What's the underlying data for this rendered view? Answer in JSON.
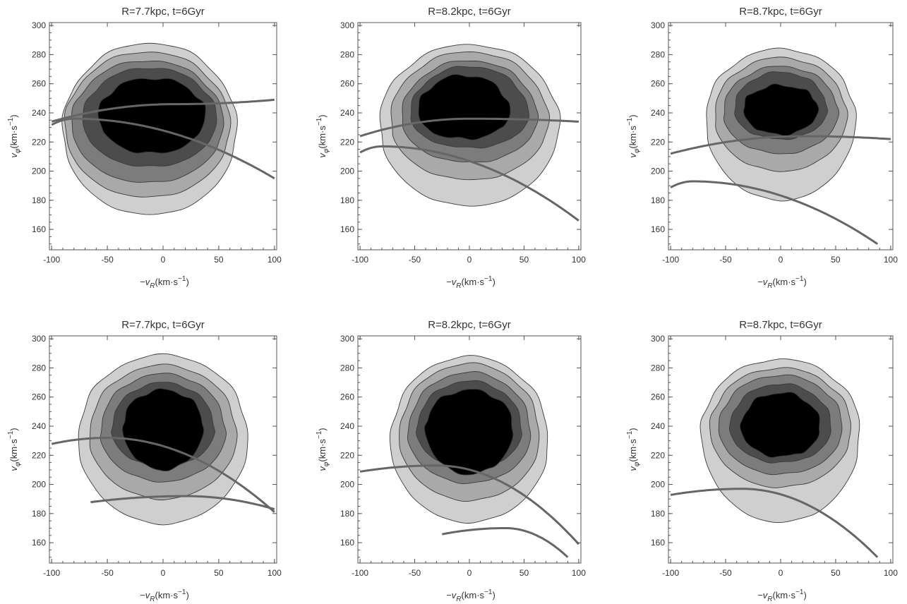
{
  "chart_data": [
    {
      "type": "contour",
      "title": "R=7.7kpc, t=6Gyr",
      "xlabel_var": "−v",
      "xlabel_sub": "R",
      "xlabel_unit": "(km·s",
      "xlabel_exp": "−1",
      "xlabel_close": ")",
      "ylabel_var": "v",
      "ylabel_sub": "φ",
      "ylabel_unit": "(km·s",
      "ylabel_exp": "−1",
      "ylabel_close": ")",
      "xlim": [
        -102,
        102
      ],
      "ylim": [
        146,
        302
      ],
      "xticks": [
        -100,
        -50,
        0,
        50,
        100
      ],
      "yticks": [
        160,
        180,
        200,
        220,
        240,
        260,
        280,
        300
      ],
      "contours": [
        {
          "center": [
            -12,
            228
          ],
          "rx": 78,
          "ry_top": 60,
          "ry_bottom": 58,
          "flat_below": 205
        },
        {
          "center": [
            -14,
            230
          ],
          "rx": 74,
          "ry_top": 52,
          "ry_bottom": 48
        },
        {
          "center": [
            -14,
            232
          ],
          "rx": 68,
          "ry_top": 44,
          "ry_bottom": 40
        },
        {
          "center": [
            -12,
            235
          ],
          "rx": 60,
          "ry_top": 36,
          "ry_bottom": 32
        },
        {
          "center": [
            -10,
            238
          ],
          "rx": 48,
          "ry_top": 26,
          "ry_bottom": 26
        }
      ],
      "resonance_arcs": [
        {
          "x_start": -100,
          "x_end": 100,
          "y_peak": 246,
          "x_peak": 10,
          "y_end": 249
        },
        {
          "x_start": -100,
          "x_end": 100,
          "y_peak": 236,
          "x_peak": -80,
          "y_end": 195
        }
      ]
    },
    {
      "type": "contour",
      "title": "R=8.2kpc, t=6Gyr",
      "xlabel_var": "−v",
      "xlabel_sub": "R",
      "xlabel_unit": "(km·s",
      "xlabel_exp": "−1",
      "xlabel_close": ")",
      "ylabel_var": "v",
      "ylabel_sub": "φ",
      "ylabel_unit": "(km·s",
      "ylabel_exp": "−1",
      "ylabel_close": ")",
      "xlim": [
        -102,
        102
      ],
      "ylim": [
        146,
        302
      ],
      "xticks": [
        -100,
        -50,
        0,
        50,
        100
      ],
      "yticks": [
        160,
        180,
        200,
        220,
        240,
        260,
        280,
        300
      ],
      "contours": [
        {
          "center": [
            0,
            232
          ],
          "rx": 82,
          "ry_top": 55,
          "ry_bottom": 56,
          "flat_below": 212
        },
        {
          "center": [
            0,
            234
          ],
          "rx": 72,
          "ry_top": 48,
          "ry_bottom": 40
        },
        {
          "center": [
            0,
            236
          ],
          "rx": 62,
          "ry_top": 40,
          "ry_bottom": 30
        },
        {
          "center": [
            0,
            238
          ],
          "rx": 54,
          "ry_top": 34,
          "ry_bottom": 22
        },
        {
          "center": [
            -5,
            240
          ],
          "rx": 42,
          "ry_top": 26,
          "ry_bottom": 18
        }
      ],
      "resonance_arcs": [
        {
          "x_start": -100,
          "x_end": 100,
          "y_peak": 236,
          "x_peak": 0,
          "y_end": 234
        },
        {
          "x_start": -100,
          "x_end": 100,
          "y_peak": 217,
          "x_peak": -80,
          "y_end": 166
        }
      ]
    },
    {
      "type": "contour",
      "title": "R=8.7kpc, t=6Gyr",
      "xlabel_var": "−v",
      "xlabel_sub": "R",
      "xlabel_unit": "(km·s",
      "xlabel_exp": "−1",
      "xlabel_close": ")",
      "ylabel_var": "v",
      "ylabel_sub": "φ",
      "ylabel_unit": "(km·s",
      "ylabel_exp": "−1",
      "ylabel_close": ")",
      "xlim": [
        -102,
        102
      ],
      "ylim": [
        146,
        302
      ],
      "xticks": [
        -100,
        -50,
        0,
        50,
        100
      ],
      "yticks": [
        160,
        180,
        200,
        220,
        240,
        260,
        280,
        300
      ],
      "contours": [
        {
          "center": [
            0,
            236
          ],
          "rx": 68,
          "ry_top": 48,
          "ry_bottom": 56,
          "flat_below": 220
        },
        {
          "center": [
            0,
            238
          ],
          "rx": 60,
          "ry_top": 40,
          "ry_bottom": 38
        },
        {
          "center": [
            0,
            240
          ],
          "rx": 52,
          "ry_top": 32,
          "ry_bottom": 28
        },
        {
          "center": [
            0,
            242
          ],
          "rx": 42,
          "ry_top": 26,
          "ry_bottom": 20
        },
        {
          "center": [
            0,
            243
          ],
          "rx": 34,
          "ry_top": 16,
          "ry_bottom": 18
        }
      ],
      "resonance_arcs": [
        {
          "x_start": -100,
          "x_end": 100,
          "y_peak": 224,
          "x_peak": 20,
          "y_end": 222
        },
        {
          "x_start": -100,
          "x_end": 88,
          "y_peak": 193,
          "x_peak": -80,
          "y_end": 150
        }
      ]
    },
    {
      "type": "contour",
      "title": "R=7.7kpc, t=6Gyr",
      "xlabel_var": "−v",
      "xlabel_sub": "R",
      "xlabel_unit": "(km·s",
      "xlabel_exp": "−1",
      "xlabel_close": ")",
      "ylabel_var": "v",
      "ylabel_sub": "φ",
      "ylabel_unit": "(km·s",
      "ylabel_exp": "−1",
      "ylabel_close": ")",
      "xlim": [
        -102,
        102
      ],
      "ylim": [
        146,
        302
      ],
      "xticks": [
        -100,
        -50,
        0,
        50,
        100
      ],
      "yticks": [
        160,
        180,
        200,
        220,
        240,
        260,
        280,
        300
      ],
      "contours": [
        {
          "center": [
            0,
            232
          ],
          "rx": 76,
          "ry_top": 57,
          "ry_bottom": 59
        },
        {
          "center": [
            0,
            234
          ],
          "rx": 66,
          "ry_top": 48,
          "ry_bottom": 44
        },
        {
          "center": [
            0,
            236
          ],
          "rx": 56,
          "ry_top": 40,
          "ry_bottom": 34
        },
        {
          "center": [
            0,
            238
          ],
          "rx": 46,
          "ry_top": 32,
          "ry_bottom": 26
        },
        {
          "center": [
            0,
            240
          ],
          "rx": 36,
          "ry_top": 25,
          "ry_bottom": 30
        }
      ],
      "resonance_arcs": [
        {
          "x_start": -100,
          "x_end": 100,
          "y_peak": 232,
          "x_peak": -50,
          "y_end": 181
        },
        {
          "x_start": -65,
          "x_end": 100,
          "y_peak": 192,
          "x_peak": 20,
          "y_end": 183
        }
      ]
    },
    {
      "type": "contour",
      "title": "R=8.2kpc, t=6Gyr",
      "xlabel_var": "−v",
      "xlabel_sub": "R",
      "xlabel_unit": "(km·s",
      "xlabel_exp": "−1",
      "xlabel_close": ")",
      "ylabel_var": "v",
      "ylabel_sub": "φ",
      "ylabel_unit": "(km·s",
      "ylabel_exp": "−1",
      "ylabel_close": ")",
      "xlim": [
        -102,
        102
      ],
      "ylim": [
        146,
        302
      ],
      "xticks": [
        -100,
        -50,
        0,
        50,
        100
      ],
      "yticks": [
        160,
        180,
        200,
        220,
        240,
        260,
        280,
        300
      ],
      "contours": [
        {
          "center": [
            0,
            230
          ],
          "rx": 72,
          "ry_top": 58,
          "ry_bottom": 56
        },
        {
          "center": [
            0,
            233
          ],
          "rx": 64,
          "ry_top": 50,
          "ry_bottom": 44
        },
        {
          "center": [
            0,
            235
          ],
          "rx": 56,
          "ry_top": 42,
          "ry_bottom": 34
        },
        {
          "center": [
            0,
            237
          ],
          "rx": 48,
          "ry_top": 34,
          "ry_bottom": 26
        },
        {
          "center": [
            0,
            239
          ],
          "rx": 40,
          "ry_top": 26,
          "ry_bottom": 32
        }
      ],
      "resonance_arcs": [
        {
          "x_start": -100,
          "x_end": 100,
          "y_peak": 213,
          "x_peak": -30,
          "y_end": 159
        },
        {
          "x_start": -25,
          "x_end": 90,
          "y_peak": 170,
          "x_peak": 33,
          "y_end": 150
        }
      ]
    },
    {
      "type": "contour",
      "title": "R=8.7kpc, t=6Gyr",
      "xlabel_var": "−v",
      "xlabel_sub": "R",
      "xlabel_unit": "(km·s",
      "xlabel_exp": "−1",
      "xlabel_close": ")",
      "ylabel_var": "v",
      "ylabel_sub": "φ",
      "ylabel_unit": "(km·s",
      "ylabel_exp": "−1",
      "ylabel_close": ")",
      "xlim": [
        -102,
        102
      ],
      "ylim": [
        146,
        302
      ],
      "xticks": [
        -100,
        -50,
        0,
        50,
        100
      ],
      "yticks": [
        160,
        180,
        200,
        220,
        240,
        260,
        280,
        300
      ],
      "contours": [
        {
          "center": [
            0,
            236
          ],
          "rx": 72,
          "ry_top": 50,
          "ry_bottom": 62
        },
        {
          "center": [
            0,
            238
          ],
          "rx": 64,
          "ry_top": 42,
          "ry_bottom": 40
        },
        {
          "center": [
            0,
            239
          ],
          "rx": 56,
          "ry_top": 36,
          "ry_bottom": 32
        },
        {
          "center": [
            0,
            239
          ],
          "rx": 46,
          "ry_top": 30,
          "ry_bottom": 24
        },
        {
          "center": [
            0,
            239
          ],
          "rx": 36,
          "ry_top": 24,
          "ry_bottom": 20
        }
      ],
      "resonance_arcs": [
        {
          "x_start": -100,
          "x_end": 88,
          "y_peak": 197,
          "x_peak": -35,
          "y_end": 150
        }
      ]
    }
  ],
  "colors": {
    "levels": [
      "#cfcfcf",
      "#a9a9a9",
      "#7c7c7c",
      "#4c4c4c",
      "#000000"
    ],
    "contour_line": "#3a3a3a",
    "resonance": "#666666",
    "frame": "#555555",
    "background": "#ffffff"
  }
}
